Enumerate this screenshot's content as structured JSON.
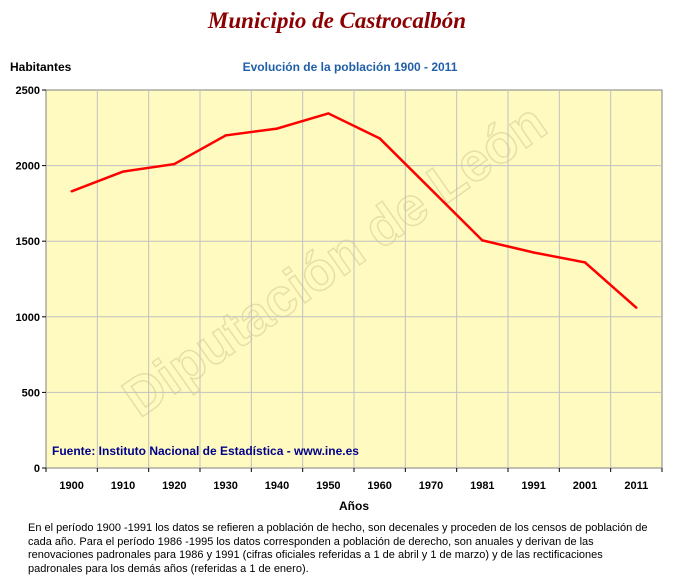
{
  "header": {
    "title": "Municipio de Castrocalbón",
    "subtitle": "Evolución de la población 1900 - 2011"
  },
  "footer": {
    "source": "Fuente: Instituto Nacional de Estadística - www.ine.es",
    "note": "En el período 1900 -1991 los datos se refieren a población de hecho, son decenales y proceden de los censos de población de cada año. Para el período 1986 -1995 los datos corresponden a población de derecho, son anuales y derivan de las renovaciones padronales para 1986 y 1991 (cifras oficiales referidas a 1 de abril y 1 de marzo) y de las rectificaciones padronales para los demás años (referidas a 1 de enero)."
  },
  "watermark": "Diputación de León",
  "colors": {
    "plot_background": "#fffbc0",
    "line": "#ff0000",
    "grid": "#c0c0c0"
  },
  "chart_data": {
    "type": "line",
    "title": "Evolución de la población 1900 - 2011",
    "xlabel": "Años",
    "ylabel": "Habitantes",
    "categories": [
      "1900",
      "1910",
      "1920",
      "1930",
      "1940",
      "1950",
      "1960",
      "1970",
      "1981",
      "1991",
      "2001",
      "2011"
    ],
    "series": [
      {
        "name": "",
        "values": [
          1830,
          1960,
          2010,
          2200,
          2245,
          2345,
          2180,
          null,
          1505,
          1425,
          1360,
          1060
        ]
      }
    ],
    "ylim": [
      0,
      2500
    ],
    "yticks": [
      0,
      500,
      1000,
      1500,
      2000,
      2500
    ],
    "grid": true,
    "legend": "none"
  }
}
